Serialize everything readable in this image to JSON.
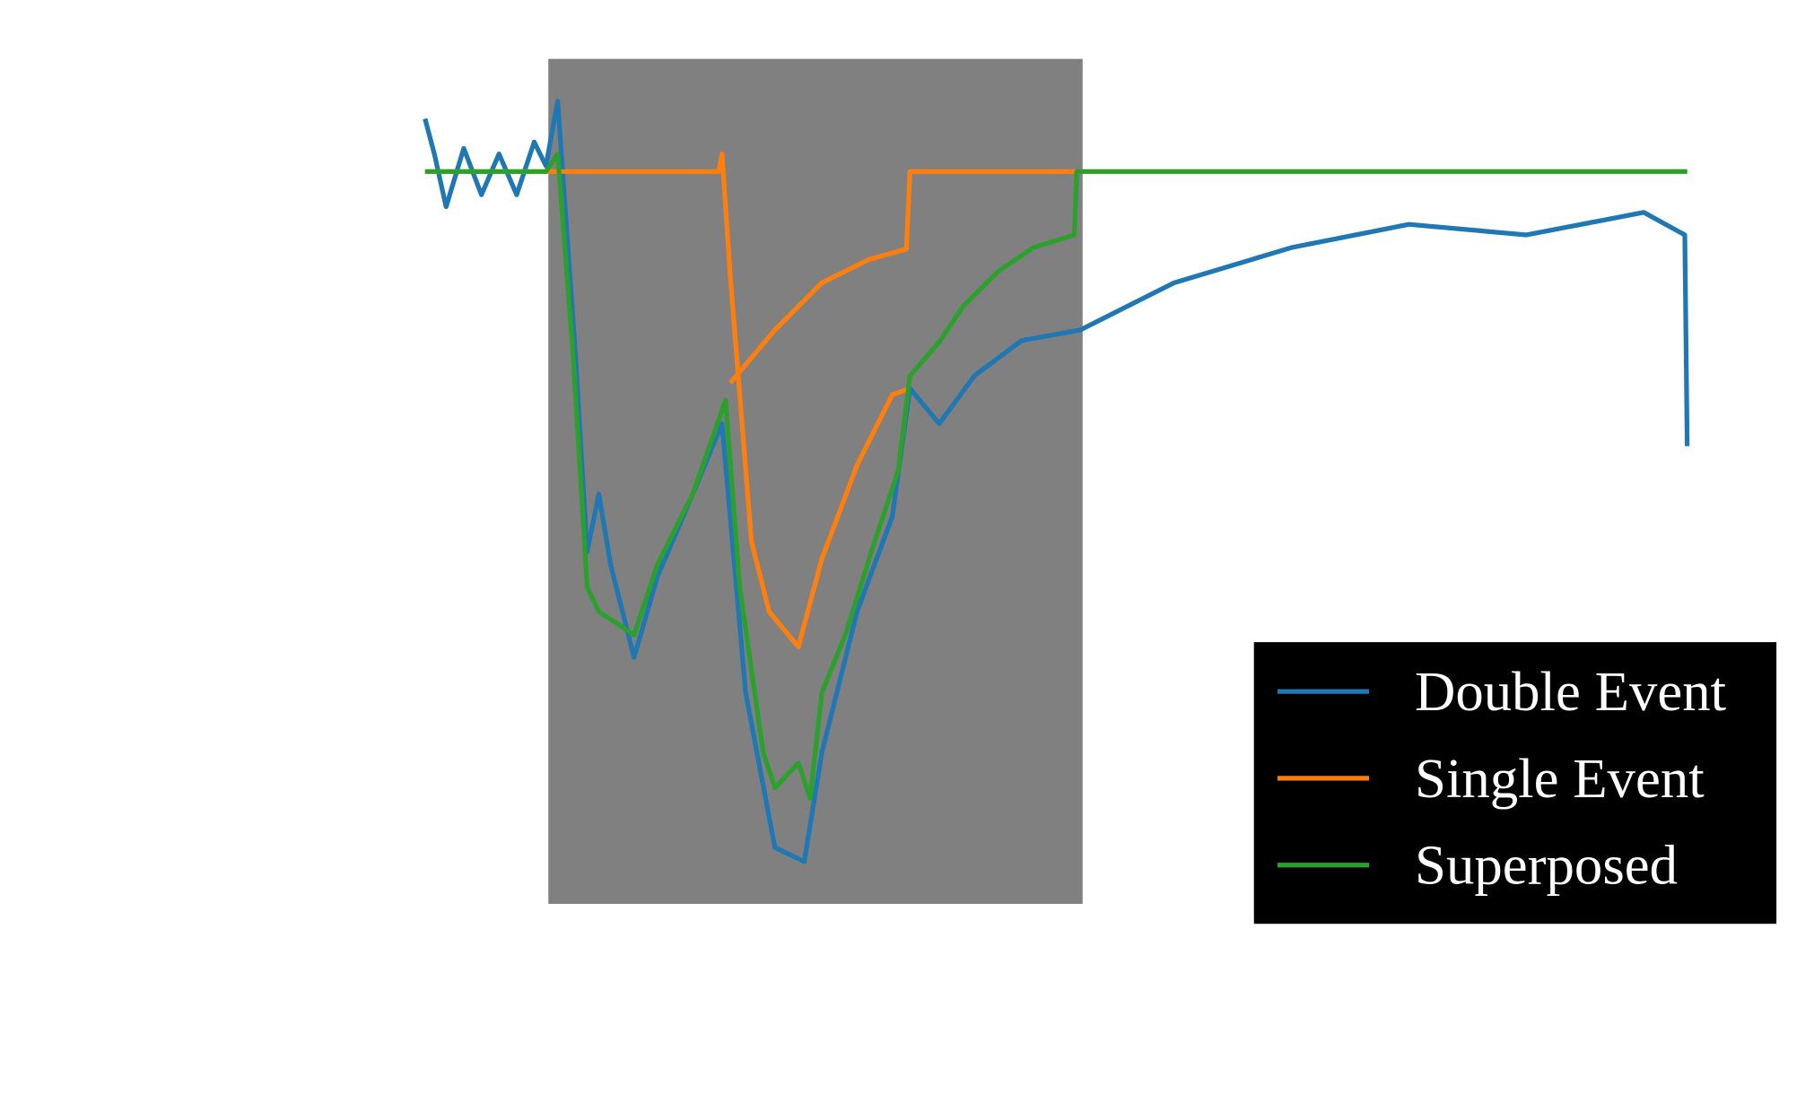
{
  "chart_data": {
    "type": "line",
    "xlim": [
      0,
      1000
    ],
    "ylim": [
      -104,
      16
    ],
    "shaded_span": [
      97.7,
      521
    ],
    "shade_color": "#808080",
    "legend": "lower right",
    "series": [
      {
        "name": "Double Event",
        "color": "#1f77b4",
        "x": [
          0,
          7.4,
          16.7,
          30.7,
          44.7,
          58.6,
          72.6,
          86.5,
          95.8,
          105.1,
          119.1,
          128.4,
          137.7,
          147,
          165.6,
          184.2,
          212.1,
          235.3,
          254,
          277.2,
          300.5,
          314.4,
          342.3,
          370.2,
          384.2,
          407.4,
          435.3,
          472.6,
          519.1,
          593.5,
          686.5,
          779.5,
          872.6,
          965.6,
          998.1,
          1000
        ],
        "values": [
          7.5,
          2.5,
          -5,
          3.3,
          -3.3,
          2.5,
          -3.3,
          4.2,
          0.8,
          10,
          -25.8,
          -54,
          -45.8,
          -55.8,
          -69,
          -57.5,
          -45.8,
          -35.8,
          -74,
          -96,
          -98,
          -82.5,
          -62.5,
          -49,
          -30.8,
          -35.8,
          -29,
          -24,
          -22.5,
          -15.8,
          -10.8,
          -7.5,
          -9,
          -5.8,
          -9,
          -39
        ]
      },
      {
        "name": "Single Event",
        "color": "#ff7f0e",
        "x": [
          0,
          232.6,
          235.3,
          241.9,
          258.6,
          272.6,
          295.8,
          314.4,
          342.3,
          370.2,
          384.2,
          null,
          241.9,
          277.2,
          314.4,
          351.6,
          381.4,
          384.2,
          1000
        ],
        "values": [
          0,
          0,
          2.5,
          -15,
          -52.5,
          -62.5,
          -67.5,
          -55,
          -41.7,
          -31.7,
          -30.8,
          null,
          -30,
          -22.5,
          -15.8,
          -12.5,
          -11,
          0,
          0
        ]
      },
      {
        "name": "Superposed",
        "color": "#2ca02c",
        "x": [
          0,
          95.8,
          105.1,
          117.2,
          128.4,
          137.7,
          165.6,
          184.2,
          212.1,
          238.1,
          249.3,
          267.9,
          277.2,
          295.8,
          305.1,
          314.4,
          333,
          356.3,
          374.9,
          384.2,
          407.4,
          426,
          454,
          481.9,
          514.4,
          516.3,
          1000
        ],
        "values": [
          0,
          0,
          2.5,
          -25.8,
          -59,
          -62.5,
          -65.8,
          -55.8,
          -45.8,
          -32.5,
          -59,
          -82.5,
          -87.5,
          -84,
          -89,
          -74,
          -65.8,
          -52.5,
          -42.5,
          -29,
          -24.2,
          -19.2,
          -14.2,
          -10.8,
          -9,
          0,
          0
        ]
      }
    ]
  }
}
